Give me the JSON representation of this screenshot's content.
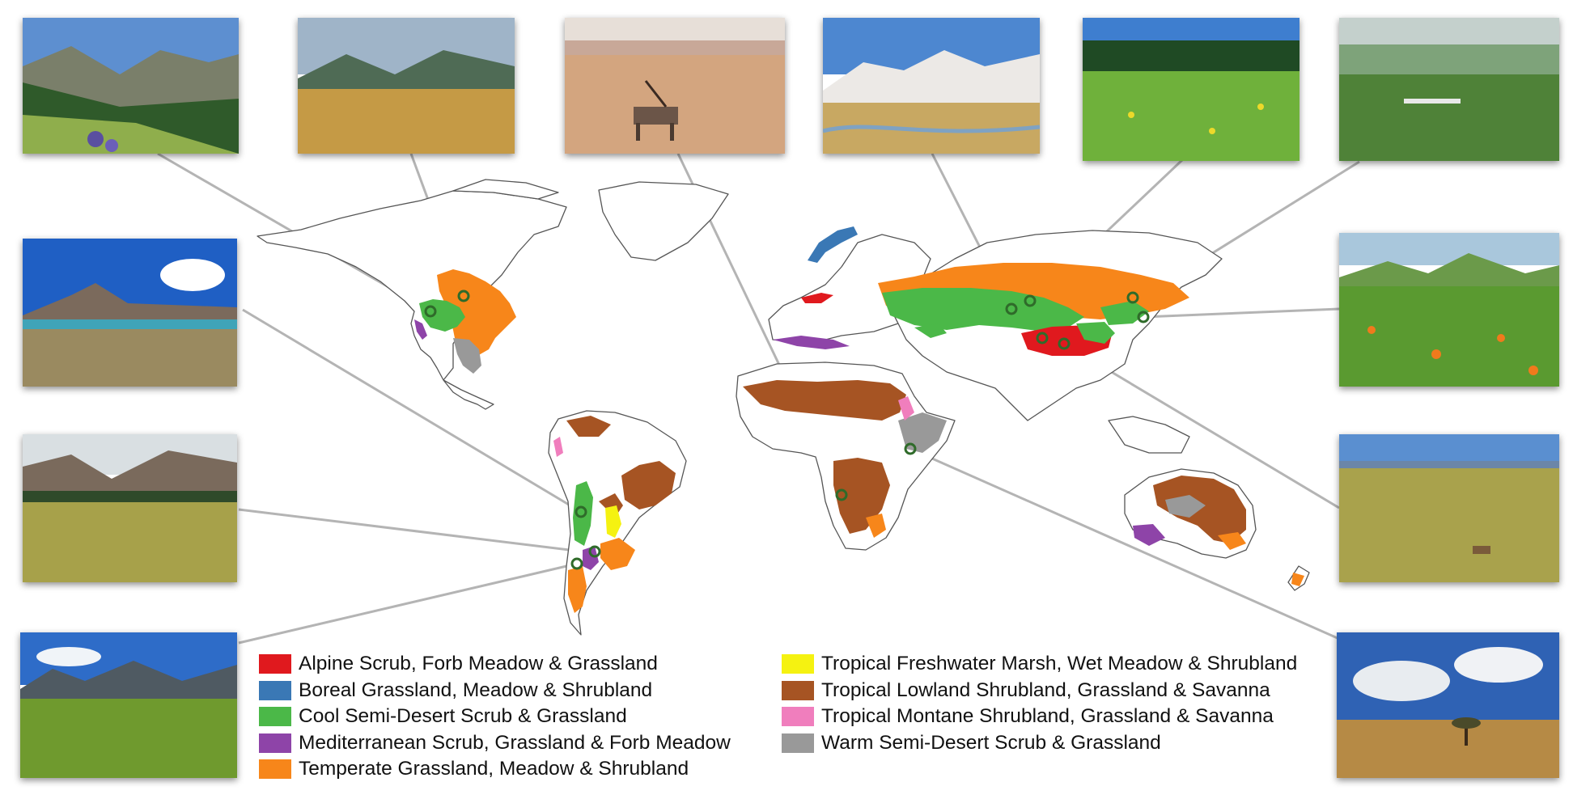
{
  "legend": [
    {
      "key": "alpine",
      "label": "Alpine Scrub, Forb Meadow & Grassland",
      "color": "#e0191e"
    },
    {
      "key": "boreal",
      "label": "Boreal Grassland, Meadow & Shrubland",
      "color": "#3a78b5"
    },
    {
      "key": "cool",
      "label": "Cool Semi-Desert Scrub & Grassland",
      "color": "#4bb848"
    },
    {
      "key": "mediterranean",
      "label": "Mediterranean Scrub, Grassland & Forb Meadow",
      "color": "#8e44a8"
    },
    {
      "key": "temperate",
      "label": "Temperate Grassland, Meadow & Shrubland",
      "color": "#f7861a"
    },
    {
      "key": "tropical_marsh",
      "label": "Tropical Freshwater Marsh, Wet Meadow & Shrubland",
      "color": "#f5f211"
    },
    {
      "key": "tropical_lowland",
      "label": "Tropical Lowland Shrubland, Grassland & Savanna",
      "color": "#a65423"
    },
    {
      "key": "tropical_montane",
      "label": "Tropical Montane Shrubland, Grassland & Savanna",
      "color": "#f07ebd"
    },
    {
      "key": "warm",
      "label": "Warm Semi-Desert Scrub & Grassland",
      "color": "#999999"
    }
  ],
  "photos": [
    {
      "scene": "alpine meadow with lupines and conifer slopes"
    },
    {
      "scene": "golden grassland with distant mountains"
    },
    {
      "scene": "oryx in desert grassland"
    },
    {
      "scene": "snow-capped peaks over steppe river valley"
    },
    {
      "scene": "green meadow with yellow flowers and forest edge"
    },
    {
      "scene": "wide green steppe with grazing flock"
    },
    {
      "scene": "high-altitude lake with snow volcano"
    },
    {
      "scene": "green hills with orange flower meadow"
    },
    {
      "scene": "patagonian valley with shrubs and clouds"
    },
    {
      "scene": "tibetan plateau grassland with antelope"
    },
    {
      "scene": "patagonian towers over green cushion plants"
    },
    {
      "scene": "savanna with lone tree under cumulus sky"
    }
  ],
  "map": {
    "outline_color": "#555555",
    "marker_color": "#2f6b2a"
  }
}
